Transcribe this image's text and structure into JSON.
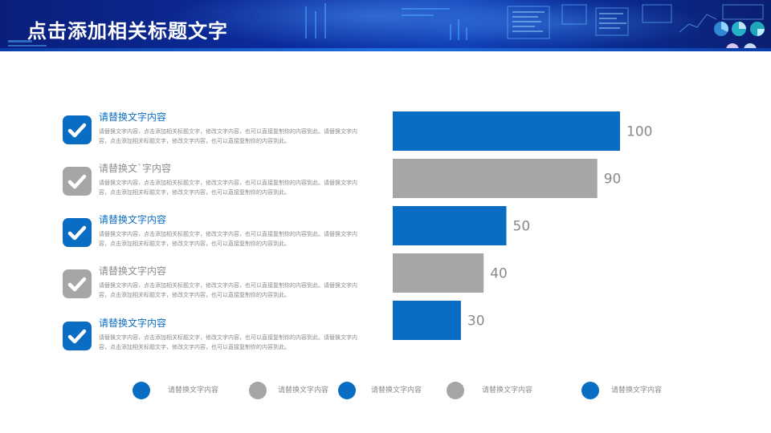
{
  "header": {
    "title": "点击添加相关标题文字"
  },
  "colors": {
    "blue": "#0a6dc4",
    "gray": "#a6a6a6",
    "banner": "#0b2a9a"
  },
  "items": [
    {
      "title": "请替换文字内容",
      "desc": "请替换文字内容，点击添加相关标题文字，修改文字内容，也可以直接复制你的内容到此。请替换文字内容，点击添加相关标题文字，修改文字内容，也可以直接复制你的内容到此。",
      "icon": "checkmark-icon",
      "color": "blue"
    },
    {
      "title": "请替换文`字内容",
      "desc": "请替换文字内容，点击添加相关标题文字，修改文字内容，也可以直接复制你的内容到此。请替换文字内容，点击添加相关标题文字，修改文字内容，也可以直接复制你的内容到此。",
      "icon": "checkmark-icon",
      "color": "gray"
    },
    {
      "title": "请替换文字内容",
      "desc": "请替换文字内容，点击添加相关标题文字，修改文字内容，也可以直接复制你的内容到此。请替换文字内容，点击添加相关标题文字，修改文字内容，也可以直接复制你的内容到此。",
      "icon": "checkmark-icon",
      "color": "blue"
    },
    {
      "title": "请替换文字内容",
      "desc": "请替换文字内容，点击添加相关标题文字，修改文字内容，也可以直接复制你的内容到此。请替换文字内容，点击添加相关标题文字，修改文字内容，也可以直接复制你的内容到此。",
      "icon": "checkmark-icon",
      "color": "gray"
    },
    {
      "title": "请替换文字内容",
      "desc": "请替换文字内容，点击添加相关标题文字，修改文字内容，也可以直接复制你的内容到此。请替换文字内容，点击添加相关标题文字，修改文字内容，也可以直接复制你的内容到此。",
      "icon": "checkmark-icon",
      "color": "blue"
    }
  ],
  "chart_data": {
    "type": "bar",
    "orientation": "horizontal",
    "values": [
      100,
      90,
      50,
      40,
      30
    ],
    "bar_colors": [
      "#0a6dc4",
      "#a6a6a6",
      "#0a6dc4",
      "#a6a6a6",
      "#0a6dc4"
    ],
    "xlim": [
      0,
      100
    ],
    "grid": false
  },
  "legend": [
    {
      "label": "请替换文字内容",
      "color": "blue"
    },
    {
      "label": "请替换文字内容",
      "color": "gray"
    },
    {
      "label": "请替换文字内容",
      "color": "blue"
    },
    {
      "label": "请替换文字内容",
      "color": "gray"
    },
    {
      "label": "请替换文字内容",
      "color": "blue"
    }
  ]
}
